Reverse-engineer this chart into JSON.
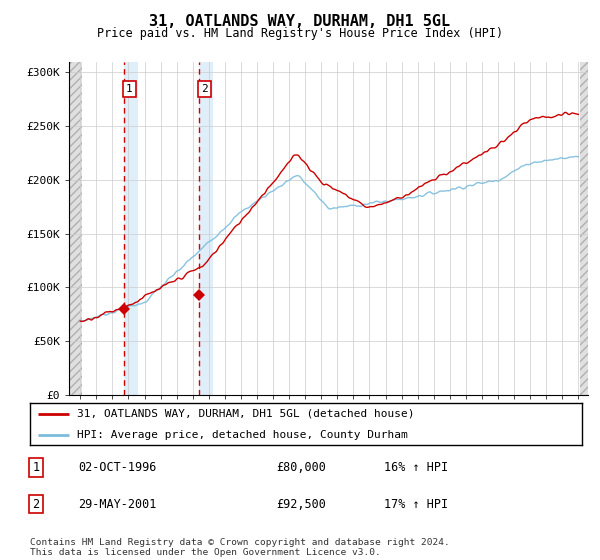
{
  "title": "31, OATLANDS WAY, DURHAM, DH1 5GL",
  "subtitle": "Price paid vs. HM Land Registry's House Price Index (HPI)",
  "legend_line1": "31, OATLANDS WAY, DURHAM, DH1 5GL (detached house)",
  "legend_line2": "HPI: Average price, detached house, County Durham",
  "transaction1_date": "02-OCT-1996",
  "transaction1_price": 80000,
  "transaction1_hpi": "16% ↑ HPI",
  "transaction2_date": "29-MAY-2001",
  "transaction2_price": 92500,
  "transaction2_hpi": "17% ↑ HPI",
  "footer": "Contains HM Land Registry data © Crown copyright and database right 2024.\nThis data is licensed under the Open Government Licence v3.0.",
  "ylim": [
    0,
    310000
  ],
  "yticks": [
    0,
    50000,
    100000,
    150000,
    200000,
    250000,
    300000
  ],
  "ytick_labels": [
    "£0",
    "£50K",
    "£100K",
    "£150K",
    "£200K",
    "£250K",
    "£300K"
  ],
  "hpi_color": "#7bbcdc",
  "price_color": "#cc0000",
  "background_color": "#ffffff",
  "grid_color": "#cccccc",
  "transaction1_x": 1996.75,
  "transaction2_x": 2001.42,
  "xmin": 1994,
  "xmax": 2025
}
